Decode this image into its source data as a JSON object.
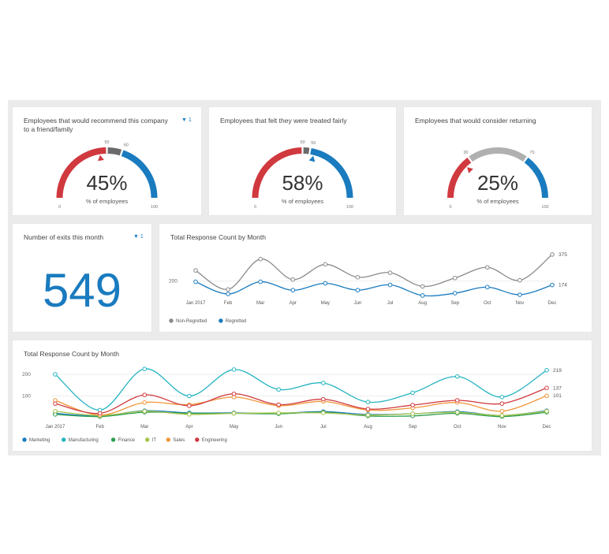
{
  "colors": {
    "red": "#d0393e",
    "blue": "#1a7bbf",
    "gray": "#9b9b9b",
    "grayLight": "#b0b0b0",
    "darkgray": "#6b6b6b"
  },
  "gauges": [
    {
      "title": "Employees that would recommend this company to a friend/family",
      "value_label": "45%",
      "sub": "% of employees",
      "min": "0",
      "max": "100",
      "value": 45,
      "t1": 50,
      "t2": 60,
      "t1_label": "50",
      "t2_label": "60",
      "has_filter": true,
      "filter_count": "1"
    },
    {
      "title": "Employees that felt they were treated fairly",
      "value_label": "58%",
      "sub": "% of employees",
      "min": "0",
      "max": "100",
      "value": 58,
      "t1": 50,
      "t2": 55,
      "t1_label": "50",
      "t2_label": "55",
      "has_filter": false
    },
    {
      "title": "Employees that would consider returning",
      "value_label": "25%",
      "sub": "% of employees",
      "min": "0",
      "max": "100",
      "value": 25,
      "t1": 30,
      "t2": 70,
      "t1_label": "30",
      "t2_label": "70",
      "has_filter": false
    }
  ],
  "exits": {
    "title": "Number of exits this month",
    "value": "549",
    "filter_count": "1"
  },
  "chart_data": [
    {
      "type": "line",
      "title": "Total Response Count by Month",
      "x": [
        "Jan 2017",
        "Feb",
        "Mar",
        "Apr",
        "May",
        "Jun",
        "Jul",
        "Aug",
        "Sep",
        "Oct",
        "Nov",
        "Dec"
      ],
      "ylim": [
        110,
        390
      ],
      "yticks": [
        200
      ],
      "end_labels": [
        "375",
        "174"
      ],
      "series": [
        {
          "name": "Non-Regretted",
          "color": "#8a8a8a",
          "values": [
            270,
            145,
            345,
            210,
            310,
            225,
            255,
            165,
            220,
            290,
            205,
            375
          ]
        },
        {
          "name": "Regretted",
          "color": "#1a7bbf",
          "values": [
            195,
            115,
            195,
            140,
            185,
            140,
            175,
            105,
            120,
            160,
            110,
            174
          ]
        }
      ],
      "legend": "bottom-left"
    },
    {
      "type": "line",
      "title": "Total Response Count by Month",
      "x": [
        "Jan 2017",
        "Feb",
        "Mar",
        "Apr",
        "May",
        "Jun",
        "Jul",
        "Aug",
        "Sep",
        "Oct",
        "Nov",
        "Dec"
      ],
      "ylim": [
        0,
        240
      ],
      "yticks": [
        100,
        200
      ],
      "end_labels": [
        "219",
        "137",
        "101"
      ],
      "series": [
        {
          "name": "Marketing",
          "color": "#1a7bbf",
          "values": [
            20,
            8,
            32,
            22,
            22,
            20,
            28,
            15,
            18,
            28,
            10,
            32
          ]
        },
        {
          "name": "Manufacturing",
          "color": "#26b5c2",
          "values": [
            200,
            35,
            225,
            100,
            222,
            130,
            160,
            72,
            115,
            190,
            95,
            219
          ]
        },
        {
          "name": "Finance",
          "color": "#2f9e4f",
          "values": [
            15,
            5,
            25,
            20,
            20,
            18,
            25,
            8,
            8,
            20,
            5,
            25
          ]
        },
        {
          "name": "IT",
          "color": "#a6c54a",
          "values": [
            30,
            10,
            30,
            15,
            20,
            22,
            22,
            12,
            18,
            25,
            10,
            30
          ]
        },
        {
          "name": "Sales",
          "color": "#f09639",
          "values": [
            80,
            12,
            70,
            60,
            95,
            55,
            75,
            35,
            45,
            70,
            30,
            101
          ]
        },
        {
          "name": "Engineering",
          "color": "#d0393e",
          "values": [
            65,
            20,
            105,
            55,
            110,
            60,
            85,
            40,
            58,
            80,
            65,
            137
          ]
        }
      ],
      "legend": "bottom-left"
    }
  ]
}
